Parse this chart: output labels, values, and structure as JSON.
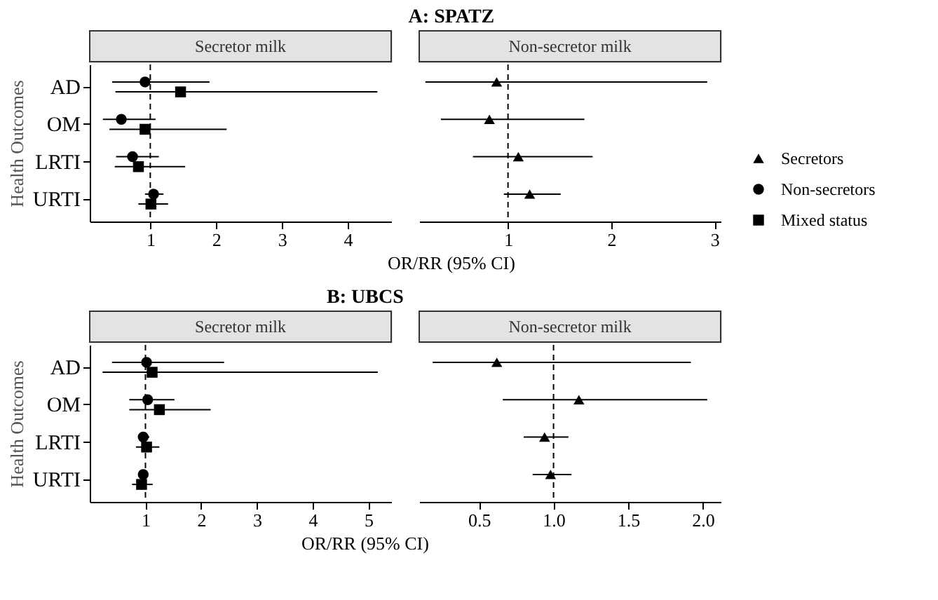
{
  "chart_data": [
    {
      "type": "scatter",
      "orientation": "horizontal",
      "title": "Secretor milk",
      "annotations": [
        "A: SPATZ"
      ],
      "xlabel": "OR/RR (95% CI)",
      "ylabel": "Health Outcomes",
      "categories": [
        "AD",
        "OM",
        "LRTI",
        "URTI"
      ],
      "xlim": [
        0.08,
        4.66
      ],
      "xticks": [
        1,
        2,
        3,
        4
      ],
      "grid": false,
      "legend": "right",
      "ref_lines": [
        {
          "axis": "x",
          "value": 1,
          "line_style": "dashed"
        }
      ],
      "series": [
        {
          "name": "Non-secretors",
          "color": "#000000",
          "marker": "circle",
          "values": [
            0.92,
            0.56,
            0.73,
            1.05
          ],
          "errors": [
            [
              0.42,
              1.9
            ],
            [
              0.28,
              1.08
            ],
            [
              0.48,
              1.13
            ],
            [
              0.92,
              1.2
            ]
          ]
        },
        {
          "name": "Mixed status",
          "color": "#000000",
          "marker": "square",
          "values": [
            1.46,
            0.92,
            0.82,
            1.01
          ],
          "errors": [
            [
              0.47,
              4.45
            ],
            [
              0.38,
              2.16
            ],
            [
              0.46,
              1.53
            ],
            [
              0.82,
              1.27
            ]
          ]
        }
      ]
    },
    {
      "type": "scatter",
      "orientation": "horizontal",
      "title": "Non-secretor milk",
      "categories": [
        "AD",
        "OM",
        "LRTI",
        "URTI"
      ],
      "xlim": [
        0.14,
        3.06
      ],
      "xticks": [
        1,
        2,
        3
      ],
      "grid": false,
      "tick_labels": "x",
      "legend": "right",
      "ref_lines": [
        {
          "axis": "x",
          "value": 1,
          "line_style": "dashed"
        }
      ],
      "series": [
        {
          "name": "Secretors",
          "color": "#000000",
          "marker": "triangle",
          "values": [
            0.89,
            0.82,
            1.1,
            1.21
          ],
          "errors": [
            [
              0.2,
              2.93
            ],
            [
              0.35,
              1.74
            ],
            [
              0.66,
              1.82
            ],
            [
              0.96,
              1.51
            ]
          ]
        }
      ]
    },
    {
      "type": "scatter",
      "orientation": "horizontal",
      "title": "Secretor milk",
      "annotations": [
        "B: UBCS"
      ],
      "xlabel": "OR/RR (95% CI)",
      "ylabel": "Health Outcomes",
      "categories": [
        "AD",
        "OM",
        "LRTI",
        "URTI"
      ],
      "xlim": [
        0.0,
        5.41
      ],
      "xticks": [
        1,
        2,
        3,
        4,
        5
      ],
      "grid": false,
      "ref_lines": [
        {
          "axis": "x",
          "value": 1,
          "line_style": "dashed"
        }
      ],
      "series": [
        {
          "name": "Non-secretors",
          "color": "#000000",
          "marker": "circle",
          "values": [
            1.02,
            1.04,
            0.96,
            0.96
          ],
          "errors": [
            [
              0.4,
              2.41
            ],
            [
              0.71,
              1.52
            ],
            [
              0.87,
              1.07
            ],
            [
              0.87,
              1.05
            ]
          ]
        },
        {
          "name": "Mixed status",
          "color": "#000000",
          "marker": "square",
          "values": [
            1.12,
            1.25,
            1.02,
            0.93
          ],
          "errors": [
            [
              0.23,
              5.17
            ],
            [
              0.71,
              2.17
            ],
            [
              0.83,
              1.25
            ],
            [
              0.76,
              1.13
            ]
          ]
        }
      ]
    },
    {
      "type": "scatter",
      "orientation": "horizontal",
      "title": "Non-secretor milk",
      "categories": [
        "AD",
        "OM",
        "LRTI",
        "URTI"
      ],
      "xlim": [
        0.1,
        2.12
      ],
      "xticks": [
        {
          "value": 0.5,
          "label": "0.5"
        },
        {
          "value": 1,
          "label": "1.0"
        },
        {
          "value": 1.5,
          "label": "1.5"
        },
        {
          "value": 2,
          "label": "2.0"
        }
      ],
      "grid": false,
      "tick_labels": "x",
      "ref_lines": [
        {
          "axis": "x",
          "value": 1,
          "line_style": "dashed"
        }
      ],
      "series": [
        {
          "name": "Secretors",
          "color": "#000000",
          "marker": "triangle",
          "values": [
            0.62,
            1.17,
            0.94,
            0.98
          ],
          "errors": [
            [
              0.19,
              1.92
            ],
            [
              0.66,
              2.03
            ],
            [
              0.8,
              1.1
            ],
            [
              0.86,
              1.12
            ]
          ]
        }
      ]
    }
  ]
}
